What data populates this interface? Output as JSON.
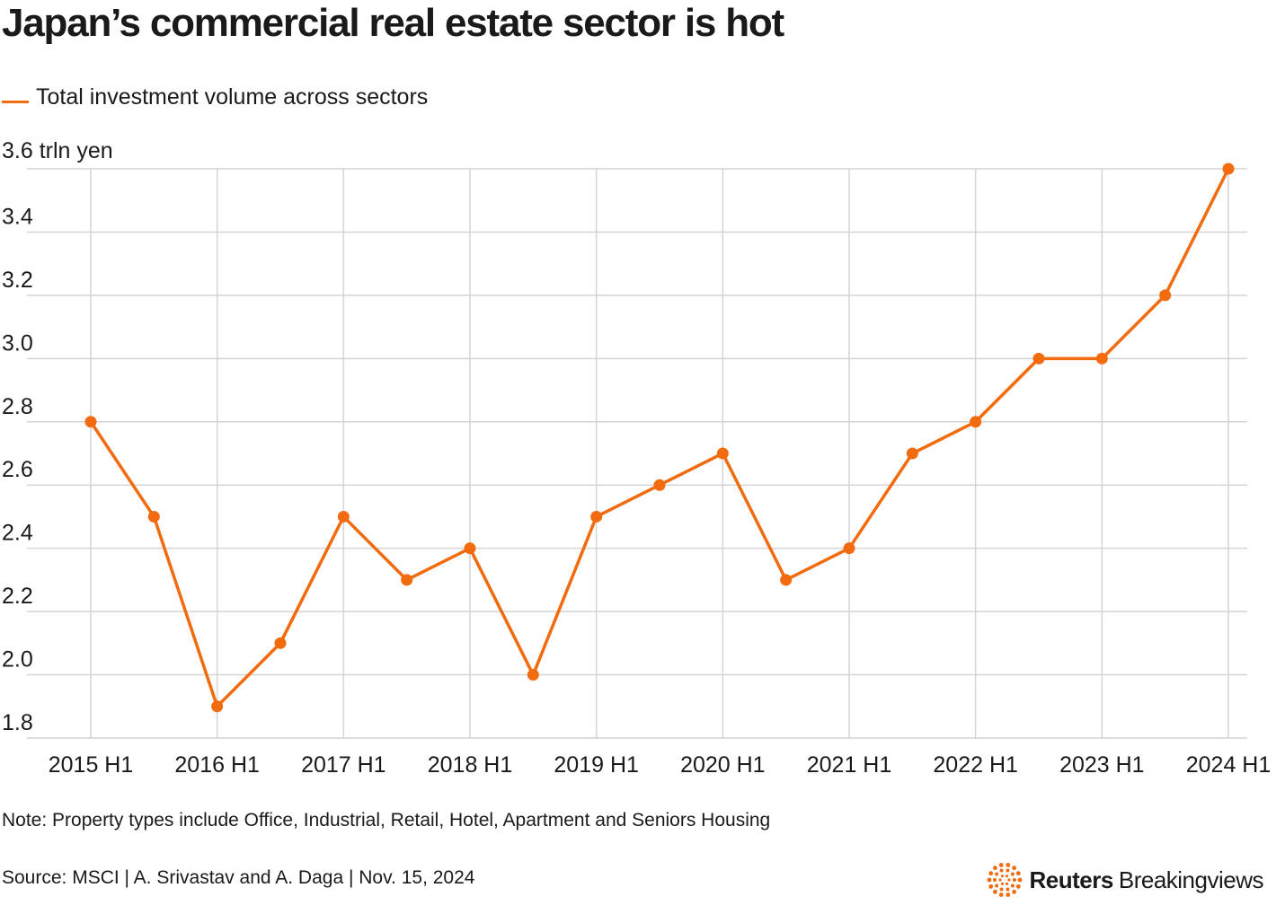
{
  "title": "Japan’s commercial real estate sector is hot",
  "colors": {
    "accent": "#f26b0f",
    "grid": "#d4d4d4",
    "text": "#1a1a1a"
  },
  "chart_data": {
    "type": "line",
    "title": "Japan’s commercial real estate sector is hot",
    "legend_position": "top-left",
    "grid": true,
    "ylabel": "3.6 trln yen",
    "xlabel": "",
    "ylim": [
      1.8,
      3.6
    ],
    "y_ticks": [
      "1.8",
      "2.0",
      "2.2",
      "2.4",
      "2.6",
      "2.8",
      "3.0",
      "3.2",
      "3.4"
    ],
    "x_tick_labels": [
      "2015 H1",
      "2016 H1",
      "2017 H1",
      "2018 H1",
      "2019 H1",
      "2020 H1",
      "2021 H1",
      "2022 H1",
      "2023 H1",
      "2024 H1"
    ],
    "x": [
      "2015 H1",
      "2015 H2",
      "2016 H1",
      "2016 H2",
      "2017 H1",
      "2017 H2",
      "2018 H1",
      "2018 H2",
      "2019 H1",
      "2019 H2",
      "2020 H1",
      "2020 H2",
      "2021 H1",
      "2021 H2",
      "2022 H1",
      "2022 H2",
      "2023 H1",
      "2023 H2",
      "2024 H1"
    ],
    "series": [
      {
        "name": "Total investment volume across sectors",
        "values": [
          2.8,
          2.5,
          1.9,
          2.1,
          2.5,
          2.3,
          2.4,
          2.0,
          2.5,
          2.6,
          2.7,
          2.3,
          2.4,
          2.7,
          2.8,
          3.0,
          3.0,
          3.2,
          3.6
        ]
      }
    ]
  },
  "note": "Note: Property types include Office, Industrial, Retail, Hotel, Apartment and Seniors Housing",
  "source": "Source: MSCI | A. Srivastav and A. Daga | Nov. 15, 2024",
  "brand": {
    "name": "Reuters",
    "product": "Breakingviews",
    "logo_icon": "reuters-dot-ring-icon"
  }
}
